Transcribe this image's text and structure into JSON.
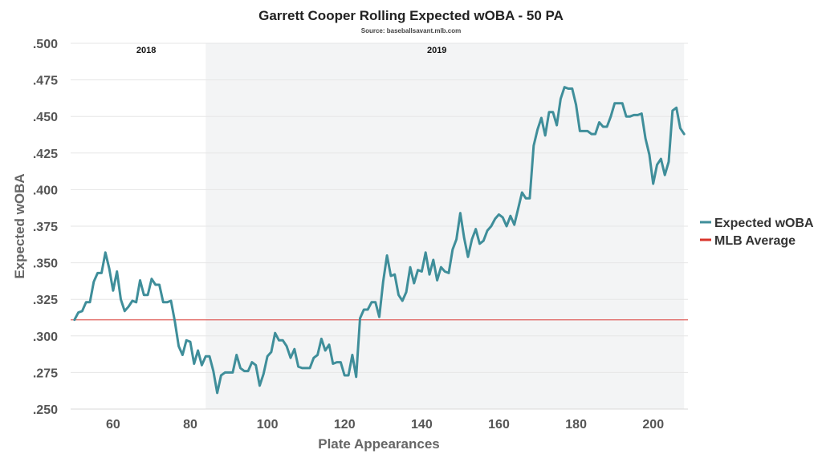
{
  "chart_data": {
    "type": "line",
    "title": "Garrett Cooper Rolling Expected wOBA - 50 PA",
    "subtitle": "Source: baseballsavant.mlb.com",
    "xlabel": "Plate Appearances",
    "ylabel": "Expected wOBA",
    "xlim": [
      49,
      209
    ],
    "ylim": [
      0.25,
      0.5
    ],
    "x_ticks": [
      60,
      80,
      100,
      120,
      140,
      160,
      180,
      200
    ],
    "x_tick_labels": [
      "60",
      "80",
      "100",
      "120",
      "140",
      "160",
      "180",
      "200"
    ],
    "y_ticks": [
      0.25,
      0.275,
      0.3,
      0.325,
      0.35,
      0.375,
      0.4,
      0.425,
      0.45,
      0.475,
      0.5
    ],
    "y_tick_labels": [
      ".250",
      ".275",
      ".300",
      ".325",
      ".350",
      ".375",
      ".400",
      ".425",
      ".450",
      ".475",
      ".500"
    ],
    "grid": "horizontal",
    "legend_position": "right",
    "regions": [
      {
        "label": "2018",
        "x_start": 49,
        "x_end": 84,
        "shaded": false
      },
      {
        "label": "2019",
        "x_start": 84,
        "x_end": 208,
        "shaded": true
      }
    ],
    "reference_lines": [
      {
        "name": "MLB Average",
        "y": 0.311,
        "color": "#e0605c"
      }
    ],
    "series": [
      {
        "name": "Expected wOBA",
        "color": "#3f8e9a",
        "x": [
          50,
          51,
          52,
          53,
          54,
          55,
          56,
          57,
          58,
          59,
          60,
          61,
          62,
          63,
          64,
          65,
          66,
          67,
          68,
          69,
          70,
          71,
          72,
          73,
          74,
          75,
          76,
          77,
          78,
          79,
          80,
          81,
          82,
          83,
          84,
          85,
          86,
          87,
          88,
          89,
          90,
          91,
          92,
          93,
          94,
          95,
          96,
          97,
          98,
          99,
          100,
          101,
          102,
          103,
          104,
          105,
          106,
          107,
          108,
          109,
          110,
          111,
          112,
          113,
          114,
          115,
          116,
          117,
          118,
          119,
          120,
          121,
          122,
          123,
          124,
          125,
          126,
          127,
          128,
          129,
          130,
          131,
          132,
          133,
          134,
          135,
          136,
          137,
          138,
          139,
          140,
          141,
          142,
          143,
          144,
          145,
          146,
          147,
          148,
          149,
          150,
          151,
          152,
          153,
          154,
          155,
          156,
          157,
          158,
          159,
          160,
          161,
          162,
          163,
          164,
          165,
          166,
          167,
          168,
          169,
          170,
          171,
          172,
          173,
          174,
          175,
          176,
          177,
          178,
          179,
          180,
          181,
          182,
          183,
          184,
          185,
          186,
          187,
          188,
          189,
          190,
          191,
          192,
          193,
          194,
          195,
          196,
          197,
          198,
          199,
          200,
          201,
          202,
          203,
          204,
          205,
          206,
          207,
          208
        ],
        "values": [
          0.311,
          0.316,
          0.317,
          0.323,
          0.323,
          0.337,
          0.343,
          0.343,
          0.357,
          0.346,
          0.331,
          0.344,
          0.325,
          0.317,
          0.32,
          0.324,
          0.323,
          0.338,
          0.328,
          0.328,
          0.339,
          0.335,
          0.335,
          0.323,
          0.323,
          0.324,
          0.31,
          0.293,
          0.287,
          0.297,
          0.296,
          0.281,
          0.29,
          0.28,
          0.286,
          0.286,
          0.276,
          0.261,
          0.273,
          0.275,
          0.275,
          0.275,
          0.287,
          0.278,
          0.276,
          0.276,
          0.282,
          0.28,
          0.266,
          0.274,
          0.286,
          0.289,
          0.302,
          0.297,
          0.297,
          0.293,
          0.285,
          0.291,
          0.279,
          0.278,
          0.278,
          0.278,
          0.285,
          0.287,
          0.298,
          0.29,
          0.294,
          0.281,
          0.282,
          0.282,
          0.273,
          0.273,
          0.287,
          0.272,
          0.312,
          0.318,
          0.318,
          0.323,
          0.323,
          0.313,
          0.337,
          0.355,
          0.341,
          0.342,
          0.328,
          0.324,
          0.33,
          0.347,
          0.336,
          0.345,
          0.344,
          0.357,
          0.342,
          0.352,
          0.338,
          0.347,
          0.344,
          0.343,
          0.359,
          0.366,
          0.384,
          0.367,
          0.354,
          0.366,
          0.373,
          0.363,
          0.365,
          0.372,
          0.375,
          0.38,
          0.383,
          0.381,
          0.375,
          0.382,
          0.376,
          0.387,
          0.398,
          0.394,
          0.394,
          0.43,
          0.441,
          0.449,
          0.437,
          0.453,
          0.453,
          0.444,
          0.462,
          0.47,
          0.469,
          0.469,
          0.458,
          0.44,
          0.44,
          0.44,
          0.438,
          0.438,
          0.446,
          0.443,
          0.443,
          0.45,
          0.459,
          0.459,
          0.459,
          0.45,
          0.45,
          0.451,
          0.451,
          0.452,
          0.435,
          0.424,
          0.404,
          0.417,
          0.421,
          0.41,
          0.419,
          0.454,
          0.456,
          0.442,
          0.438
        ]
      }
    ]
  }
}
